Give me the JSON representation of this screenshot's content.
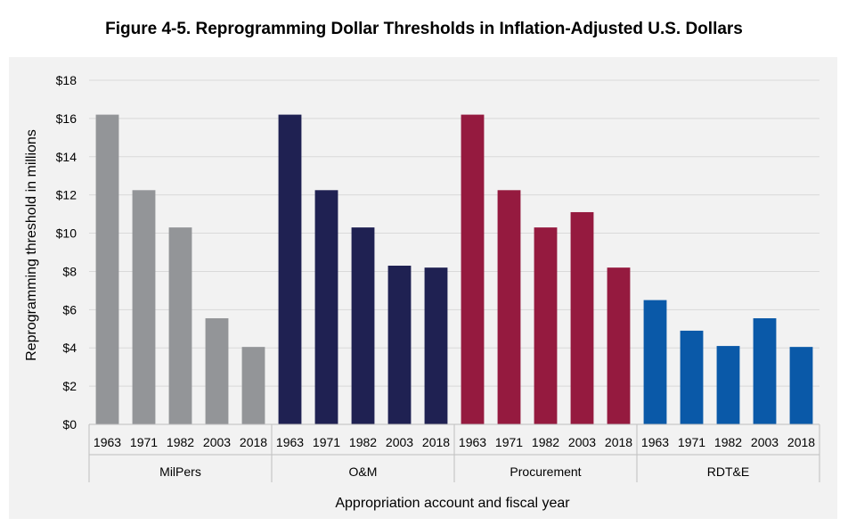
{
  "chart_data": {
    "type": "bar",
    "title": "Figure 4-5. Reprogramming Dollar Thresholds in Inflation-Adjusted U.S. Dollars",
    "xlabel": "Appropriation account and fiscal year",
    "ylabel": "Reprogramming threshold in millions",
    "ylim": [
      0,
      18
    ],
    "yticks": [
      "$0",
      "$2",
      "$4",
      "$6",
      "$8",
      "$10",
      "$12",
      "$14",
      "$16",
      "$18"
    ],
    "grid": true,
    "groups": [
      {
        "name": "MilPers",
        "color": "#939598",
        "categories": [
          "1963",
          "1971",
          "1982",
          "2003",
          "2018"
        ],
        "values": [
          16.2,
          12.25,
          10.3,
          5.55,
          4.05
        ]
      },
      {
        "name": "O&M",
        "color": "#1f2152",
        "categories": [
          "1963",
          "1971",
          "1982",
          "2003",
          "2018"
        ],
        "values": [
          16.2,
          12.25,
          10.3,
          8.3,
          8.2
        ]
      },
      {
        "name": "Procurement",
        "color": "#951a3f",
        "categories": [
          "1963",
          "1971",
          "1982",
          "2003",
          "2018"
        ],
        "values": [
          16.2,
          12.25,
          10.3,
          11.1,
          8.2
        ]
      },
      {
        "name": "RDT&E",
        "color": "#0a59a8",
        "categories": [
          "1963",
          "1971",
          "1982",
          "2003",
          "2018"
        ],
        "values": [
          6.5,
          4.9,
          4.1,
          5.55,
          4.05
        ]
      }
    ]
  }
}
